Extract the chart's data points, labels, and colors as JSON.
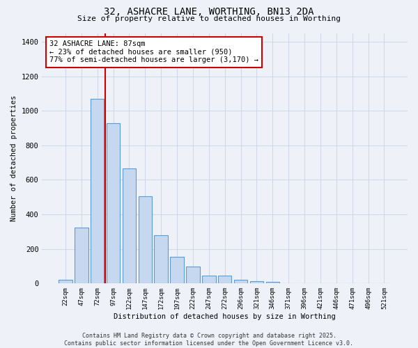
{
  "title1": "32, ASHACRE LANE, WORTHING, BN13 2DA",
  "title2": "Size of property relative to detached houses in Worthing",
  "xlabel": "Distribution of detached houses by size in Worthing",
  "ylabel": "Number of detached properties",
  "bin_labels": [
    "22sqm",
    "47sqm",
    "72sqm",
    "97sqm",
    "122sqm",
    "147sqm",
    "172sqm",
    "197sqm",
    "222sqm",
    "247sqm",
    "272sqm",
    "296sqm",
    "321sqm",
    "346sqm",
    "371sqm",
    "396sqm",
    "421sqm",
    "446sqm",
    "471sqm",
    "496sqm",
    "521sqm"
  ],
  "bar_values": [
    20,
    325,
    1070,
    930,
    668,
    505,
    278,
    153,
    100,
    45,
    45,
    20,
    13,
    8,
    0,
    0,
    0,
    0,
    0,
    0,
    0
  ],
  "bar_color": "#c5d8f0",
  "bar_edge_color": "#5b9bd5",
  "vline_color": "#cc0000",
  "annotation_text": "32 ASHACRE LANE: 87sqm\n← 23% of detached houses are smaller (950)\n77% of semi-detached houses are larger (3,170) →",
  "annotation_box_color": "#ffffff",
  "annotation_border_color": "#cc0000",
  "grid_color": "#d0d8e8",
  "background_color": "#eef2f8",
  "footer_text": "Contains HM Land Registry data © Crown copyright and database right 2025.\nContains public sector information licensed under the Open Government Licence v3.0.",
  "ylim": [
    0,
    1450
  ],
  "yticks": [
    0,
    200,
    400,
    600,
    800,
    1000,
    1200,
    1400
  ]
}
